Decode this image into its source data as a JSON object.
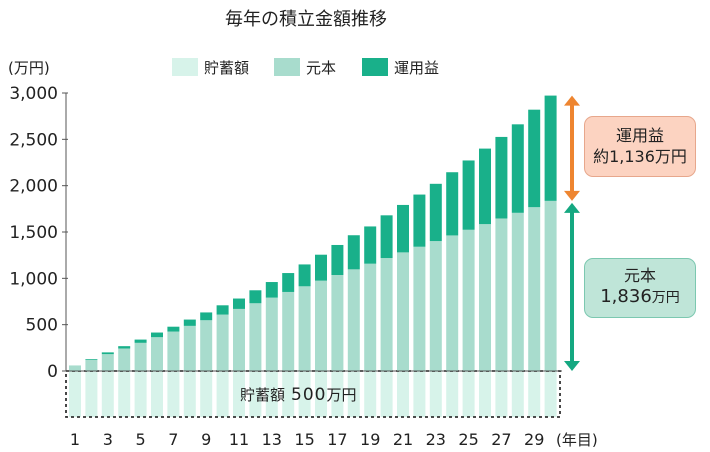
{
  "chart_data": {
    "type": "bar",
    "title": "毎年の積立金額推移",
    "ylabel": "(万円)",
    "xlabel": "(年目)",
    "ylim": [
      0,
      3000
    ],
    "yticks": [
      "0",
      "500",
      "1,000",
      "1,500",
      "2,000",
      "2,500",
      "3,000"
    ],
    "ytick_values": [
      0,
      500,
      1000,
      1500,
      2000,
      2500,
      3000
    ],
    "x": [
      1,
      2,
      3,
      4,
      5,
      6,
      7,
      8,
      9,
      10,
      11,
      12,
      13,
      14,
      15,
      16,
      17,
      18,
      19,
      20,
      21,
      22,
      23,
      24,
      25,
      26,
      27,
      28,
      29,
      30
    ],
    "xtick_labels": [
      "1",
      "3",
      "5",
      "7",
      "9",
      "11",
      "13",
      "15",
      "17",
      "19",
      "21",
      "23",
      "25",
      "27",
      "29"
    ],
    "series": [
      {
        "name": "貯蓄額",
        "color": "#d7f3ea",
        "values": [
          500,
          500,
          500,
          500,
          500,
          500,
          500,
          500,
          500,
          500,
          500,
          500,
          500,
          500,
          500,
          500,
          500,
          500,
          500,
          500,
          500,
          500,
          500,
          500,
          500,
          500,
          500,
          500,
          500,
          500
        ]
      },
      {
        "name": "元本",
        "color": "#a8dccd",
        "values": [
          60,
          121,
          182,
          243,
          304,
          365,
          426,
          487,
          548,
          609,
          670,
          731,
          792,
          853,
          914,
          975,
          1036,
          1097,
          1158,
          1219,
          1280,
          1341,
          1402,
          1463,
          1524,
          1585,
          1646,
          1707,
          1768,
          1836
        ]
      },
      {
        "name": "運用益",
        "color": "#19b08a",
        "values": [
          0,
          8,
          19,
          25,
          35,
          50,
          52,
          68,
          84,
          100,
          112,
          140,
          168,
          204,
          236,
          280,
          324,
          368,
          402,
          461,
          512,
          563,
          618,
          682,
          748,
          815,
          880,
          955,
          1052,
          1136
        ]
      }
    ],
    "annotations": {
      "profit_label": "運用益",
      "profit_amount": "約1,136万円",
      "principal_label": "元本",
      "principal_amount": "1,836",
      "principal_unit": "万円",
      "savings_label": "貯蓄額",
      "savings_amount": "500",
      "savings_unit": "万円",
      "profit_arrow_color": "#ee8530",
      "principal_arrow_color": "#15a881"
    }
  }
}
